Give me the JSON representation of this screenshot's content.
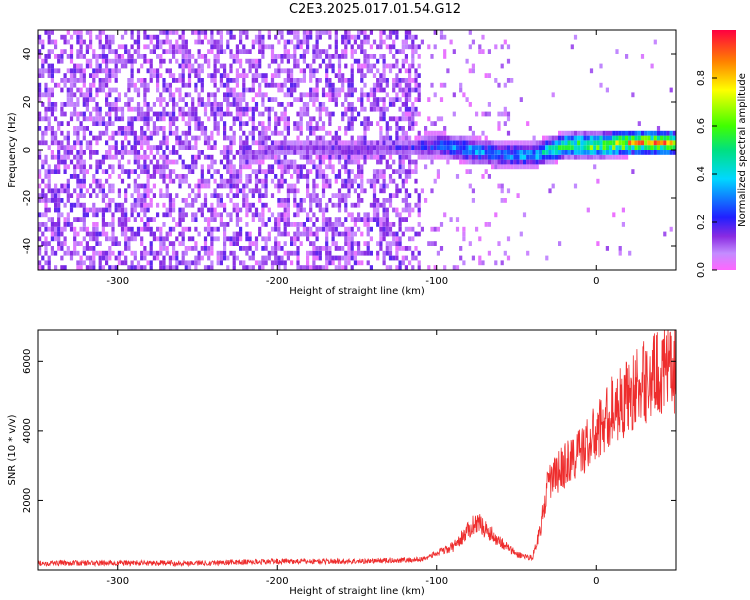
{
  "title": "C2E3.2025.017.01.54.G12",
  "colors": {
    "snr_line": "#ee2d2d",
    "frame": "#000000"
  },
  "chart_data": [
    {
      "type": "heatmap",
      "xlabel": "Height of straight line (km)",
      "ylabel": "Frequency (Hz)",
      "xlim": [
        -350,
        50
      ],
      "ylim": [
        -50,
        50
      ],
      "x_ticks": [
        -300,
        -200,
        -100,
        0
      ],
      "y_ticks": [
        -40,
        -20,
        0,
        20,
        40
      ],
      "colorbar": {
        "label": "Normalized spectral amplitude",
        "range": [
          0,
          1
        ],
        "ticks": [
          0.0,
          0.2,
          0.4,
          0.6,
          0.8
        ],
        "colormap": "rainbow (magenta-blue-cyan-green-yellow-red)"
      },
      "signal_track": [
        {
          "x": -220,
          "freq": -5,
          "amp": 0.15
        },
        {
          "x": -200,
          "freq": 0,
          "amp": 0.15
        },
        {
          "x": -150,
          "freq": -1,
          "amp": 0.2
        },
        {
          "x": -120,
          "freq": 0,
          "amp": 0.2
        },
        {
          "x": -100,
          "freq": 1,
          "amp": 0.3
        },
        {
          "x": -80,
          "freq": -1,
          "amp": 0.4
        },
        {
          "x": -60,
          "freq": -3,
          "amp": 0.35
        },
        {
          "x": -40,
          "freq": -3,
          "amp": 0.45
        },
        {
          "x": -20,
          "freq": 1,
          "amp": 0.65
        },
        {
          "x": 0,
          "freq": 1,
          "amp": 0.8
        },
        {
          "x": 20,
          "freq": 2,
          "amp": 0.9
        },
        {
          "x": 50,
          "freq": 2,
          "amp": 0.9
        }
      ]
    },
    {
      "type": "line",
      "xlabel": "Height of straight line (km)",
      "ylabel": "SNR (10 * v/v)",
      "xlim": [
        -350,
        50
      ],
      "ylim": [
        0,
        6900
      ],
      "x_ticks": [
        -300,
        -200,
        -100,
        0
      ],
      "y_ticks": [
        2000,
        4000,
        6000
      ],
      "series": [
        {
          "x": [
            -350,
            -300,
            -250,
            -200,
            -150,
            -110,
            -90,
            -75,
            -65,
            -50,
            -40,
            -35,
            -30,
            -20,
            -10,
            0,
            10,
            20,
            30,
            40,
            50
          ],
          "y": [
            200,
            200,
            200,
            250,
            250,
            300,
            650,
            1400,
            1000,
            450,
            350,
            1200,
            2500,
            3000,
            3400,
            3900,
            4600,
            5000,
            5400,
            5700,
            5800
          ]
        }
      ]
    }
  ]
}
